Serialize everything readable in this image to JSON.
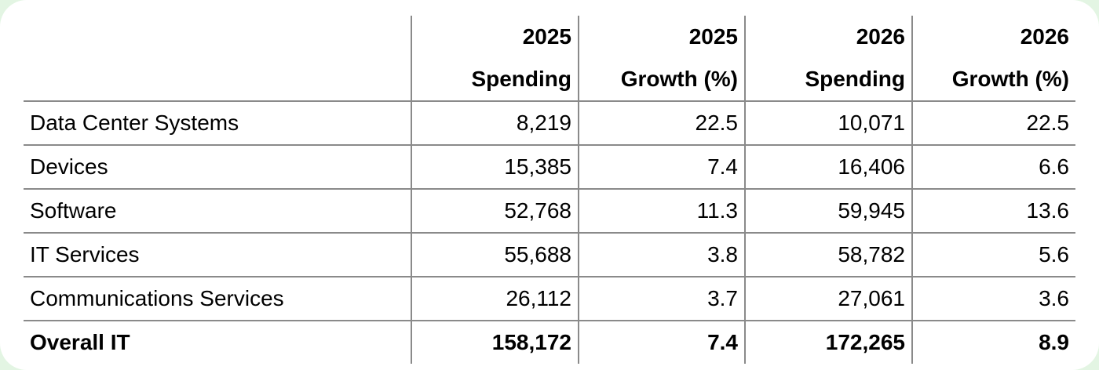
{
  "table": {
    "headers": [
      {
        "line1": "",
        "line2": ""
      },
      {
        "line1": "2025",
        "line2": "Spending"
      },
      {
        "line1": "2025",
        "line2": "Growth (%)"
      },
      {
        "line1": "2026",
        "line2": "Spending"
      },
      {
        "line1": "2026",
        "line2": "Growth (%)"
      }
    ],
    "rows": [
      [
        "Data Center Systems",
        "8,219",
        "22.5",
        "10,071",
        "22.5"
      ],
      [
        "Devices",
        "15,385",
        "7.4",
        "16,406",
        "6.6"
      ],
      [
        "Software",
        "52,768",
        "11.3",
        "59,945",
        "13.6"
      ],
      [
        "IT Services",
        "55,688",
        "3.8",
        "58,782",
        "5.6"
      ],
      [
        "Communications Services",
        "26,112",
        "3.7",
        "27,061",
        "3.6"
      ]
    ],
    "total": [
      "Overall IT",
      "158,172",
      "7.4",
      "172,265",
      "8.9"
    ]
  }
}
